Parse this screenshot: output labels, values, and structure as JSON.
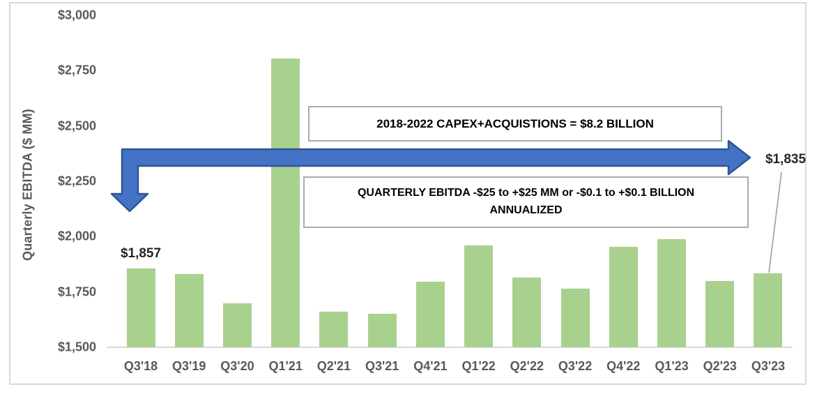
{
  "chart_data": {
    "type": "bar",
    "title": "",
    "xlabel": "",
    "ylabel": "Quarterly EBITDA ($ MM)",
    "categories": [
      "Q3'18",
      "Q3'19",
      "Q3'20",
      "Q1'21",
      "Q2'21",
      "Q3'21",
      "Q4'21",
      "Q1'22",
      "Q2'22",
      "Q3'22",
      "Q4'22",
      "Q1'23",
      "Q2'23",
      "Q3'23"
    ],
    "values": [
      1857,
      1830,
      1700,
      2805,
      1660,
      1650,
      1795,
      1960,
      1815,
      1765,
      1955,
      1990,
      1800,
      1835
    ],
    "ylim": [
      1500,
      3000
    ],
    "ytick_step": 250,
    "ytick_labels": [
      "$1,500",
      "$1,750",
      "$2,000",
      "$2,250",
      "$2,500",
      "$2,750",
      "$3,000"
    ],
    "grid": false,
    "legend": "none",
    "bar_color": "#A9D18E",
    "axis_text_color": "#595959",
    "data_labels": {
      "first": {
        "category": "Q3'18",
        "text": "$1,857"
      },
      "last": {
        "category": "Q3'23",
        "text": "$1,835",
        "leader_line_color": "#A6A6A6"
      }
    },
    "annotations": {
      "capex_box": {
        "text": "2018-2022 CAPEX+ACQUISTIONS = $8.2 BILLION"
      },
      "ebitda_box": {
        "line1": "QUARTERLY EBITDA -$25 to +$25 MM or -$0.1 to +$0.1 BILLION",
        "line2": "ANNUALIZED"
      }
    },
    "arrow": {
      "shape": "bent double-headed arrow: down arrowhead at left end, right arrowhead at right end",
      "fill": "#4472C4",
      "stroke": "#2F5597"
    }
  }
}
